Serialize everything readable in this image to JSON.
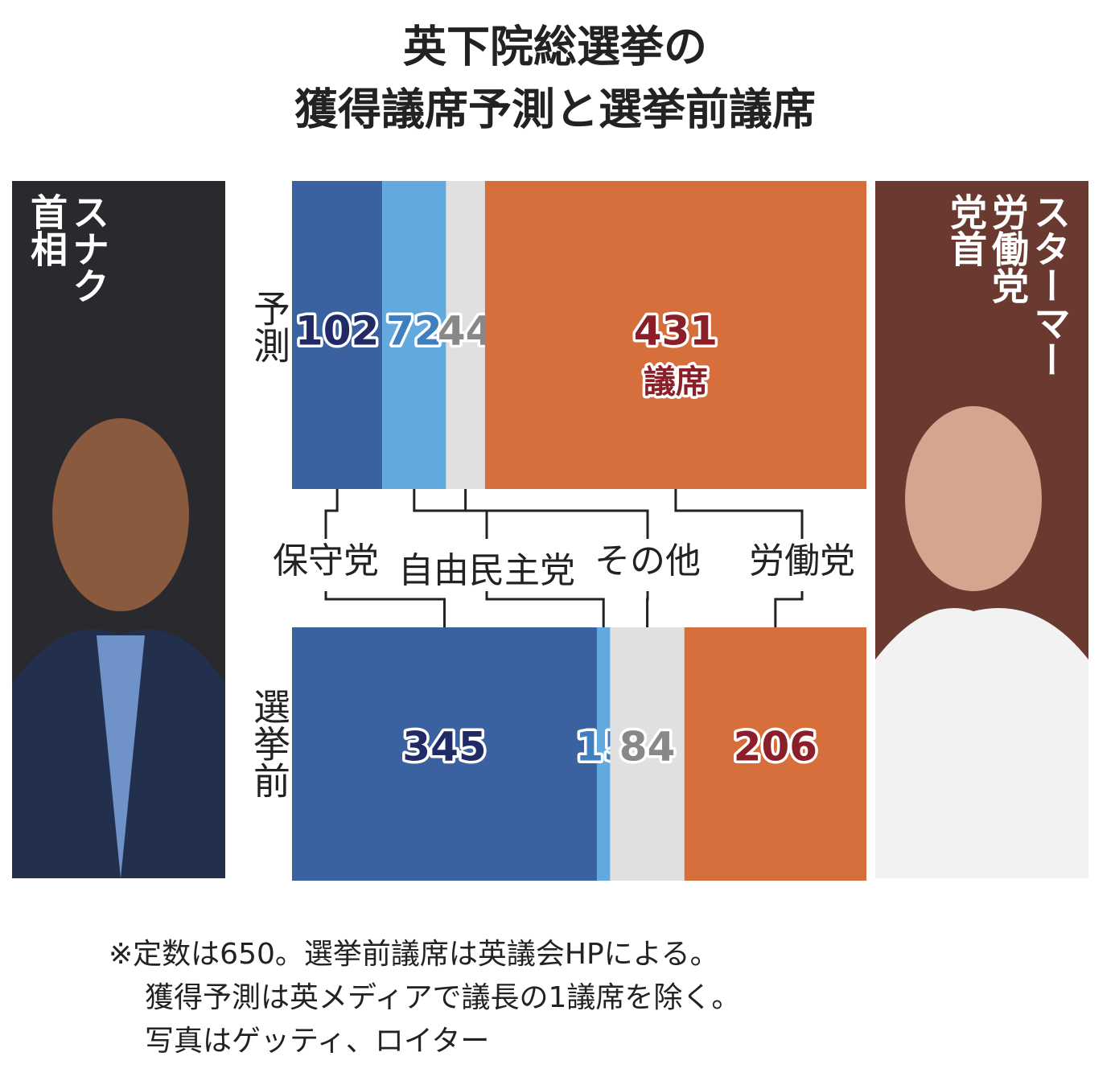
{
  "chart_data": {
    "type": "stacked_bar_100",
    "title": [
      "英下院総選挙の",
      "獲得議席予測と選挙前議席"
    ],
    "categories": [
      "予測",
      "選挙前"
    ],
    "series": [
      {
        "name": "保守党",
        "color": "#3a62a0",
        "label_color": "#1f2a66",
        "values": [
          102,
          345
        ]
      },
      {
        "name": "自由民主党",
        "color": "#62a9e0",
        "label_color": "#3f7fc0",
        "values": [
          72,
          15
        ]
      },
      {
        "name": "その他",
        "color": "#e0e0e0",
        "label_color": "#888888",
        "values": [
          44,
          84
        ]
      },
      {
        "name": "労働党",
        "color": "#d66f3c",
        "label_color": "#8a1f2a",
        "values": [
          431,
          206
        ]
      }
    ],
    "unit_label": "議席",
    "left_caption": [
      "スナク",
      "首相"
    ],
    "right_caption": [
      "スターマー",
      "労働党",
      "党首"
    ],
    "footnote": [
      "※定数は650。選挙前議席は英議会HPによる。",
      "獲得予測は英メディアで議長の1議席を除く。",
      "写真はゲッティ、ロイター"
    ]
  }
}
